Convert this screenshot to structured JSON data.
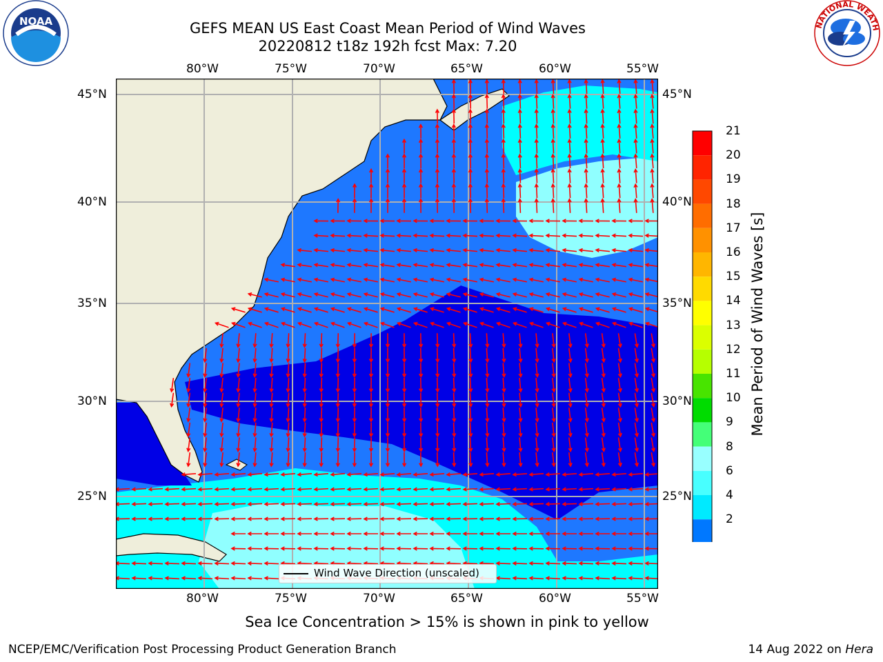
{
  "title": {
    "line1": "GEFS MEAN US East Coast Mean Period of Wind Waves",
    "line2": "20220812 t18z 192h fcst   Max: 7.20"
  },
  "axes": {
    "lon_ticks": [
      "80°W",
      "75°W",
      "70°W",
      "65°W",
      "60°W",
      "55°W"
    ],
    "lat_ticks": [
      "45°N",
      "40°N",
      "35°N",
      "30°N",
      "25°N"
    ],
    "lon_range": [
      -85,
      -53.5
    ],
    "lat_range": [
      20.5,
      46
    ],
    "grid": true
  },
  "colorbar": {
    "label": "Mean Period of Wind Waves [s]",
    "ticks": [
      "21",
      "20",
      "19",
      "18",
      "17",
      "16",
      "15",
      "14",
      "13",
      "12",
      "11",
      "10",
      "9",
      "8",
      "6",
      "4",
      "2"
    ],
    "bin_colors": [
      "#ff0000",
      "#ff2400",
      "#ff4800",
      "#ff6d00",
      "#ff9100",
      "#ffb600",
      "#ffda00",
      "#ffff00",
      "#dbff00",
      "#b6ff00",
      "#48e400",
      "#00dc00",
      "#44ff78",
      "#98ffff",
      "#48ffff",
      "#00eaff",
      "#0078ff"
    ],
    "extend_color": "#0000ff"
  },
  "legend": {
    "label": "Wind Wave Direction (unscaled)"
  },
  "notes": {
    "sea_ice": "Sea Ice Concentration > 15% is shown in pink to yellow"
  },
  "footer": {
    "left": "NCEP/EMC/Verification Post Processing Product Generation Branch",
    "date": "14 Aug 2022 on ",
    "machine": "Hera"
  },
  "logos": {
    "left": "NOAA",
    "left_ring": "NATIONAL OCEANIC AND ATMOSPHERIC ADMINISTRATION · U.S. DEPARTMENT OF COMMERCE",
    "right_ring": "NATIONAL WEATHER SERVICE"
  },
  "colors": {
    "land": "#efeedb",
    "arrow": "#ff0000",
    "deep": "#0000e6",
    "mid": "#1e78ff",
    "cyan": "#00ffff",
    "light": "#90ffff"
  }
}
